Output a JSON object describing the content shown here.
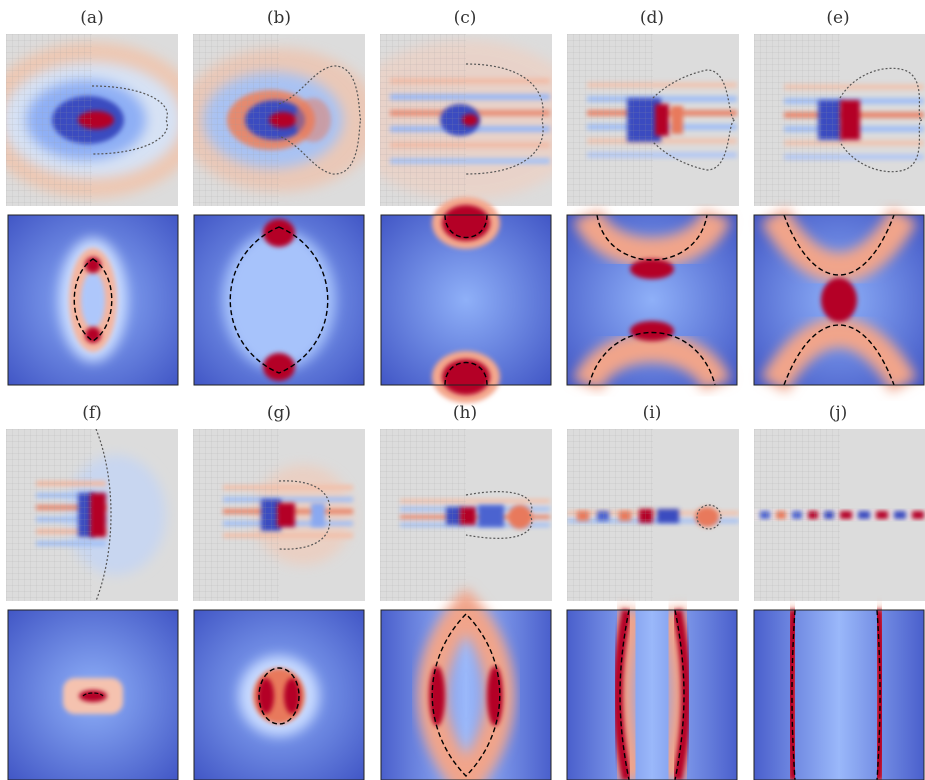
{
  "figure": {
    "panels": [
      {
        "label": "(a)"
      },
      {
        "label": "(b)"
      },
      {
        "label": "(c)"
      },
      {
        "label": "(d)"
      },
      {
        "label": "(e)"
      },
      {
        "label": "(f)"
      },
      {
        "label": "(g)"
      },
      {
        "label": "(h)"
      },
      {
        "label": "(i)"
      },
      {
        "label": "(j)"
      }
    ]
  },
  "colors": {
    "hot": "#b40426",
    "warm": "#e8795c",
    "cold": "#3b4cc0",
    "cool": "#6f92f3",
    "neutral": "#dddcdc",
    "contour": "#000000"
  }
}
